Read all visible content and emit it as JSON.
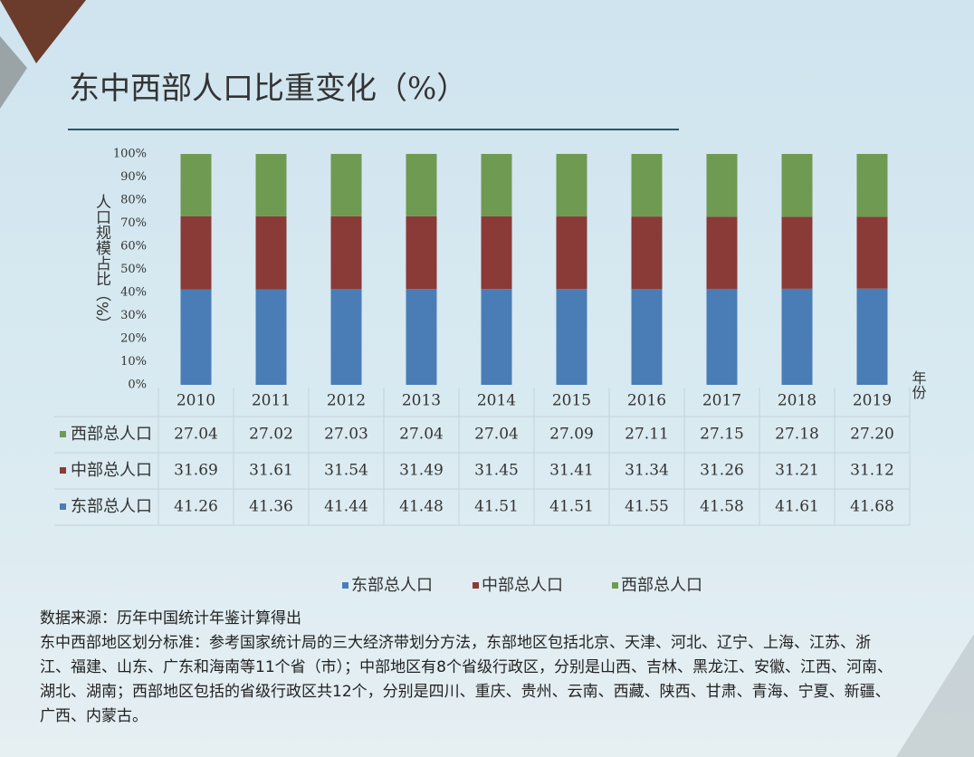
{
  "chart_data": {
    "type": "stacked-bar",
    "title": "东中西部人口比重变化（%）",
    "y_label": "人口规模占比（%）",
    "x_label": "年份",
    "categories": [
      "2010",
      "2011",
      "2012",
      "2013",
      "2014",
      "2015",
      "2016",
      "2017",
      "2018",
      "2019"
    ],
    "series": [
      {
        "name": "东部总人口",
        "color": "#4a7db5",
        "values": [
          41.26,
          41.36,
          41.44,
          41.48,
          41.51,
          41.51,
          41.55,
          41.58,
          41.61,
          41.68
        ]
      },
      {
        "name": "中部总人口",
        "color": "#8a3a37",
        "values": [
          31.69,
          31.61,
          31.54,
          31.49,
          31.45,
          31.41,
          31.34,
          31.26,
          31.21,
          31.12
        ]
      },
      {
        "name": "西部总人口",
        "color": "#6f9a52",
        "values": [
          27.04,
          27.02,
          27.03,
          27.04,
          27.04,
          27.09,
          27.11,
          27.15,
          27.18,
          27.2
        ],
        "value_labels": [
          "27.04",
          "27.02",
          "27.03",
          "27.04",
          "27.04",
          "27.09",
          "27.11",
          "27.15",
          "27.18",
          "27.20"
        ]
      }
    ],
    "ylim": [
      0,
      100
    ],
    "yticks": [
      {
        "value": 0,
        "label": "0%"
      },
      {
        "value": 10,
        "label": "10%"
      },
      {
        "value": 20,
        "label": "20%"
      },
      {
        "value": 30,
        "label": "30%"
      },
      {
        "value": 40,
        "label": "40%"
      },
      {
        "value": 50,
        "label": "50%"
      },
      {
        "value": 60,
        "label": "60%"
      },
      {
        "value": 70,
        "label": "70%"
      },
      {
        "value": 80,
        "label": "80%"
      },
      {
        "value": 90,
        "label": "90%"
      },
      {
        "value": 100,
        "label": "100%"
      }
    ],
    "notes": [
      "数据来源：历年中国统计年鉴计算得出",
      "东中西部地区划分标准：参考国家统计局的三大经济带划分方法，东部地区包括北京、天津、河北、辽宁、上海、江苏、浙江、福建、山东、广东和海南等11个省（市）；中部地区有8个省级行政区，分别是山西、吉林、黑龙江、安徽、江西、河南、湖北、湖南；西部地区包括的省级行政区共12个，分别是四川、重庆、贵州、云南、西藏、陕西、甘肃、青海、宁夏、新疆、广西、内蒙古。"
    ]
  }
}
